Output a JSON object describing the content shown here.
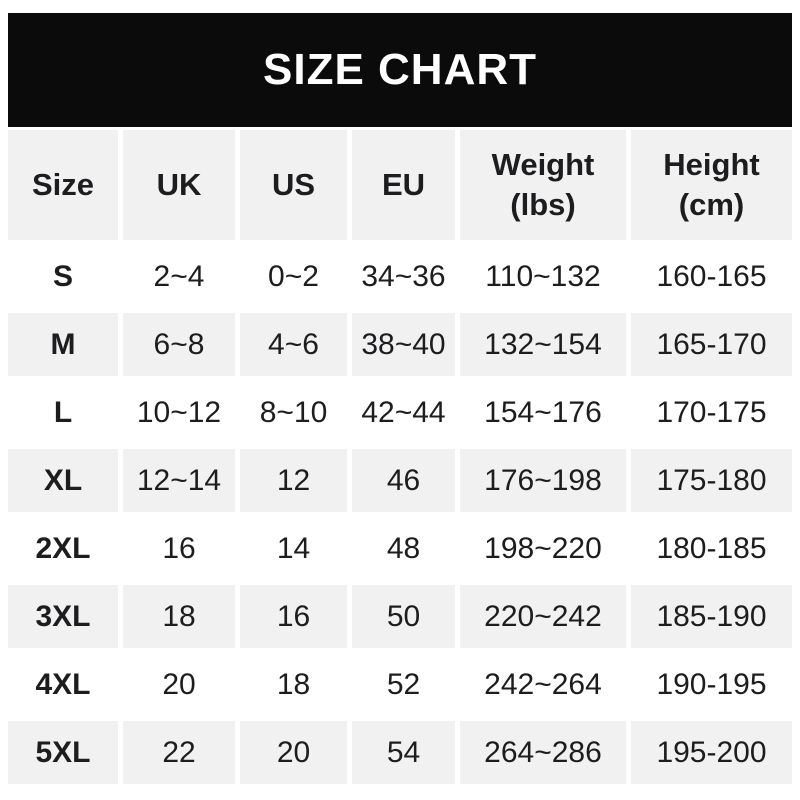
{
  "colors": {
    "page_bg": "#ffffff",
    "banner_bg": "#0b0b0b",
    "banner_text": "#ffffff",
    "stripe": "#f1f1f2",
    "text": "#1d1d1f"
  },
  "banner": {
    "title": "SIZE CHART"
  },
  "chart_data": {
    "type": "table",
    "title": "SIZE CHART",
    "legend_position": "none",
    "columns": [
      {
        "id": "size",
        "label": "Size"
      },
      {
        "id": "uk",
        "label": "UK"
      },
      {
        "id": "us",
        "label": "US"
      },
      {
        "id": "eu",
        "label": "EU"
      },
      {
        "id": "weight",
        "label": "Weight\n(lbs)"
      },
      {
        "id": "height",
        "label": "Height\n(cm)"
      }
    ],
    "rows": [
      {
        "size": "S",
        "uk": "2~4",
        "us": "0~2",
        "eu": "34~36",
        "weight": "110~132",
        "height": "160-165"
      },
      {
        "size": "M",
        "uk": "6~8",
        "us": "4~6",
        "eu": "38~40",
        "weight": "132~154",
        "height": "165-170"
      },
      {
        "size": "L",
        "uk": "10~12",
        "us": "8~10",
        "eu": "42~44",
        "weight": "154~176",
        "height": "170-175"
      },
      {
        "size": "XL",
        "uk": "12~14",
        "us": "12",
        "eu": "46",
        "weight": "176~198",
        "height": "175-180"
      },
      {
        "size": "2XL",
        "uk": "16",
        "us": "14",
        "eu": "48",
        "weight": "198~220",
        "height": "180-185"
      },
      {
        "size": "3XL",
        "uk": "18",
        "us": "16",
        "eu": "50",
        "weight": "220~242",
        "height": "185-190"
      },
      {
        "size": "4XL",
        "uk": "20",
        "us": "18",
        "eu": "52",
        "weight": "242~264",
        "height": "190-195"
      },
      {
        "size": "5XL",
        "uk": "22",
        "us": "20",
        "eu": "54",
        "weight": "264~286",
        "height": "195-200"
      }
    ]
  }
}
